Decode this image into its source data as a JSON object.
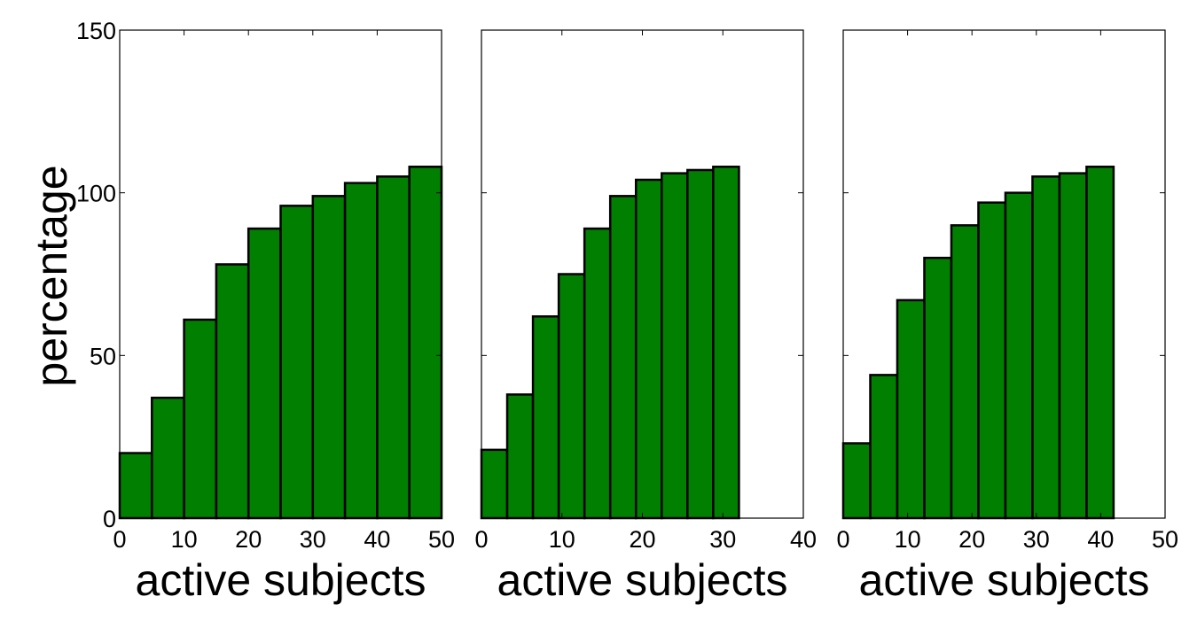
{
  "chart_data": [
    {
      "type": "bar",
      "x": [
        0,
        5,
        10,
        15,
        20,
        25,
        30,
        35,
        40,
        45
      ],
      "bin_width": 5,
      "values": [
        20,
        37,
        61,
        78,
        89,
        96,
        99,
        103,
        105,
        108
      ],
      "xlabel": "active subjects",
      "ylabel": "percentage",
      "xlim": [
        0,
        50
      ],
      "ylim": [
        0,
        150
      ],
      "xticks": [
        0,
        10,
        20,
        30,
        40,
        50
      ],
      "yticks": [
        0,
        50,
        100,
        150
      ],
      "bar_color": "#007f00"
    },
    {
      "type": "bar",
      "x": [
        0,
        3.2,
        6.4,
        9.6,
        12.8,
        16,
        19.2,
        22.4,
        25.6,
        28.8
      ],
      "bin_width": 3.2,
      "values": [
        21,
        38,
        62,
        75,
        89,
        99,
        104,
        106,
        107,
        108
      ],
      "xlabel": "active subjects",
      "xlim": [
        0,
        40
      ],
      "ylim": [
        0,
        150
      ],
      "xticks": [
        0,
        10,
        20,
        30,
        40
      ],
      "bar_color": "#007f00"
    },
    {
      "type": "bar",
      "x": [
        0,
        4.2,
        8.4,
        12.6,
        16.8,
        21,
        25.2,
        29.4,
        33.6,
        37.8
      ],
      "bin_width": 4.2,
      "values": [
        23,
        44,
        67,
        80,
        90,
        97,
        100,
        105,
        106,
        108
      ],
      "xlabel": "active subjects",
      "xlim": [
        0,
        50
      ],
      "ylim": [
        0,
        150
      ],
      "xticks": [
        0,
        10,
        20,
        30,
        40,
        50
      ],
      "bar_color": "#007f00"
    }
  ]
}
